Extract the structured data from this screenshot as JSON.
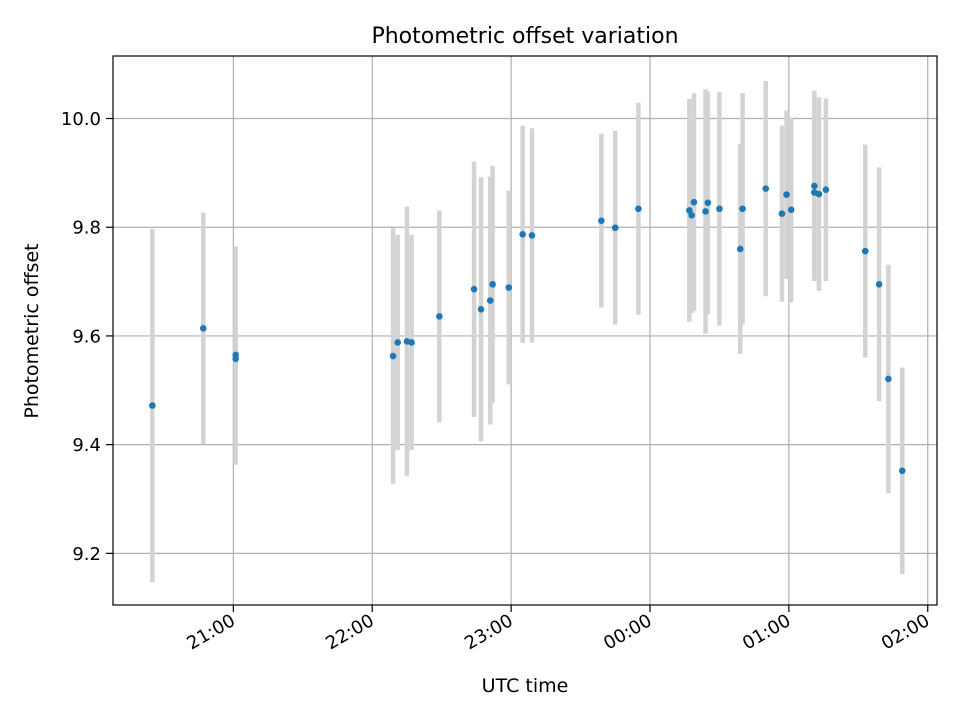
{
  "chart_data": {
    "type": "scatter",
    "title": "Photometric offset variation",
    "xlabel": "UTC time",
    "ylabel": "Photometric offset",
    "x_ticks": [
      "21:00",
      "22:00",
      "23:00",
      "00:00",
      "01:00",
      "02:00"
    ],
    "y_ticks": [
      "9.2",
      "9.4",
      "9.6",
      "9.8",
      "10.0"
    ],
    "xlim": [
      "20:08",
      "02:04"
    ],
    "ylim": [
      9.105,
      10.115
    ],
    "grid": true,
    "point_color": "#1f77b4",
    "errorbar_color": "#d3d3d3",
    "points": [
      {
        "x": "20:25",
        "y": 9.472,
        "err": 0.325
      },
      {
        "x": "20:47",
        "y": 9.614,
        "err": 0.213
      },
      {
        "x": "21:01",
        "y": 9.558,
        "err": 0.195
      },
      {
        "x": "21:01",
        "y": 9.565,
        "err": 0.2
      },
      {
        "x": "22:09",
        "y": 9.563,
        "err": 0.235
      },
      {
        "x": "22:11",
        "y": 9.588,
        "err": 0.198
      },
      {
        "x": "22:15",
        "y": 9.59,
        "err": 0.248
      },
      {
        "x": "22:17",
        "y": 9.588,
        "err": 0.198
      },
      {
        "x": "22:29",
        "y": 9.636,
        "err": 0.195
      },
      {
        "x": "22:44",
        "y": 9.686,
        "err": 0.235
      },
      {
        "x": "22:47",
        "y": 9.649,
        "err": 0.243
      },
      {
        "x": "22:51",
        "y": 9.665,
        "err": 0.228
      },
      {
        "x": "22:52",
        "y": 9.695,
        "err": 0.218
      },
      {
        "x": "22:59",
        "y": 9.689,
        "err": 0.178
      },
      {
        "x": "23:05",
        "y": 9.787,
        "err": 0.2
      },
      {
        "x": "23:09",
        "y": 9.785,
        "err": 0.197
      },
      {
        "x": "23:39",
        "y": 9.812,
        "err": 0.16
      },
      {
        "x": "23:45",
        "y": 9.799,
        "err": 0.178
      },
      {
        "x": "23:55",
        "y": 9.834,
        "err": 0.195
      },
      {
        "x": "00:17",
        "y": 9.831,
        "err": 0.205
      },
      {
        "x": "00:18",
        "y": 9.822,
        "err": 0.18
      },
      {
        "x": "00:19",
        "y": 9.846,
        "err": 0.2
      },
      {
        "x": "00:24",
        "y": 9.829,
        "err": 0.225
      },
      {
        "x": "00:25",
        "y": 9.845,
        "err": 0.205
      },
      {
        "x": "00:30",
        "y": 9.834,
        "err": 0.215
      },
      {
        "x": "00:39",
        "y": 9.76,
        "err": 0.193
      },
      {
        "x": "00:40",
        "y": 9.834,
        "err": 0.213
      },
      {
        "x": "00:50",
        "y": 9.871,
        "err": 0.198
      },
      {
        "x": "00:57",
        "y": 9.825,
        "err": 0.162
      },
      {
        "x": "00:59",
        "y": 9.86,
        "err": 0.155
      },
      {
        "x": "01:01",
        "y": 9.832,
        "err": 0.17
      },
      {
        "x": "01:11",
        "y": 9.876,
        "err": 0.175
      },
      {
        "x": "01:11",
        "y": 9.864,
        "err": 0.15
      },
      {
        "x": "01:13",
        "y": 9.861,
        "err": 0.178
      },
      {
        "x": "01:16",
        "y": 9.869,
        "err": 0.168
      },
      {
        "x": "01:33",
        "y": 9.756,
        "err": 0.196
      },
      {
        "x": "01:39",
        "y": 9.695,
        "err": 0.215
      },
      {
        "x": "01:43",
        "y": 9.521,
        "err": 0.21
      },
      {
        "x": "01:49",
        "y": 9.352,
        "err": 0.19
      }
    ]
  }
}
